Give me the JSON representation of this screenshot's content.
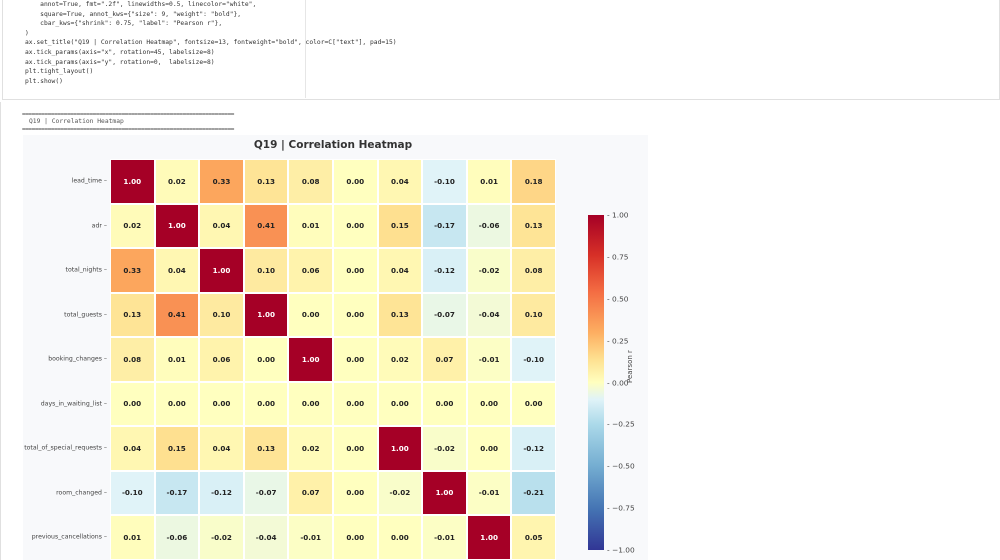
{
  "code": {
    "lines": [
      "    annot=True, fmt=\".2f\", linewidths=0.5, linecolor=\"white\",",
      "    square=True, annot_kws={\"size\": 9, \"weight\": \"bold\"},",
      "    cbar_kws={\"shrink\": 0.75, \"label\": \"Pearson r\"},",
      ")",
      "ax.set_title(\"Q19 | Correlation Heatmap\", fontsize=13, fontweight=\"bold\", color=C[\"text\"], pad=15)",
      "ax.tick_params(axis=\"x\", rotation=45, labelsize=8)",
      "ax.tick_params(axis=\"y\", rotation=0,  labelsize=8)",
      "plt.tight_layout()",
      "plt.show()"
    ]
  },
  "output": {
    "rule": "==================================================================",
    "title": "Q19 | Correlation Heatmap"
  },
  "chart_data": {
    "type": "heatmap",
    "title": "Q19 | Correlation Heatmap",
    "colormap": "RdYlBu_r",
    "value_range": [
      -1,
      1
    ],
    "colorbar_label": "Pearson r",
    "colorbar_ticks": [
      "1.00",
      "0.75",
      "0.50",
      "0.25",
      "0.00",
      "−0.25",
      "−0.50",
      "−0.75",
      "−1.00"
    ],
    "row_labels": [
      "lead_time",
      "adr",
      "total_nights",
      "total_guests",
      "booking_changes",
      "days_in_waiting_list",
      "total_of_special_requests",
      "room_changed",
      "previous_cancellations"
    ],
    "values": [
      [
        1.0,
        0.02,
        0.33,
        0.13,
        0.08,
        0.0,
        0.04,
        -0.1,
        0.01,
        0.18
      ],
      [
        0.02,
        1.0,
        0.04,
        0.41,
        0.01,
        0.0,
        0.15,
        -0.17,
        -0.06,
        0.13
      ],
      [
        0.33,
        0.04,
        1.0,
        0.1,
        0.06,
        0.0,
        0.04,
        -0.12,
        -0.02,
        0.08
      ],
      [
        0.13,
        0.41,
        0.1,
        1.0,
        0.0,
        0.0,
        0.13,
        -0.07,
        -0.04,
        0.1
      ],
      [
        0.08,
        0.01,
        0.06,
        0.0,
        1.0,
        0.0,
        0.02,
        0.07,
        -0.01,
        -0.1
      ],
      [
        0.0,
        0.0,
        0.0,
        0.0,
        0.0,
        0.0,
        0.0,
        0.0,
        0.0,
        0.0
      ],
      [
        0.04,
        0.15,
        0.04,
        0.13,
        0.02,
        0.0,
        1.0,
        -0.02,
        0.0,
        -0.12
      ],
      [
        -0.1,
        -0.17,
        -0.12,
        -0.07,
        0.07,
        0.0,
        -0.02,
        1.0,
        -0.01,
        -0.21
      ],
      [
        0.01,
        -0.06,
        -0.02,
        -0.04,
        -0.01,
        0.0,
        0.0,
        -0.01,
        1.0,
        0.05
      ]
    ]
  }
}
